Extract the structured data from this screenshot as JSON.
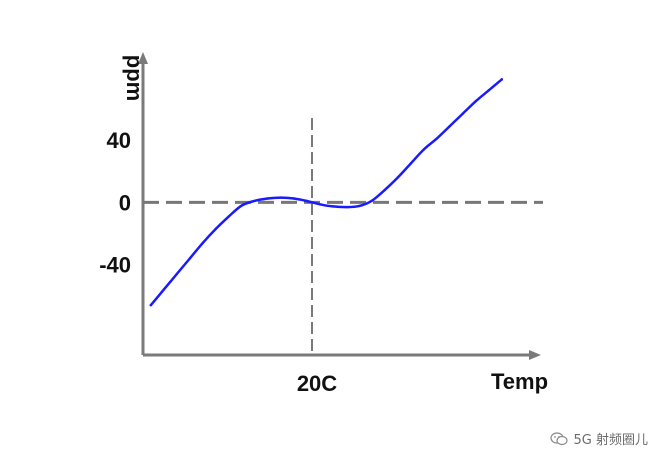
{
  "chart_data": {
    "type": "line",
    "xlabel": "Temp",
    "ylabel": "ppm",
    "x_tick_labels": [
      {
        "x": 20,
        "label": "20C"
      }
    ],
    "y_tick_labels": [
      {
        "y": 40,
        "label": "40"
      },
      {
        "y": 0,
        "label": "0"
      },
      {
        "y": -40,
        "label": "-40"
      }
    ],
    "xlim": [
      -45,
      105
    ],
    "ylim": [
      -98,
      112
    ],
    "reference_lines": [
      {
        "orientation": "horizontal",
        "value": 0,
        "style": "dashed"
      },
      {
        "orientation": "vertical",
        "value": 20,
        "style": "dashed"
      }
    ],
    "series": [
      {
        "color": "#1a1aff",
        "x": [
          -42,
          -37,
          -32,
          -27,
          -22,
          -17,
          -12,
          -7,
          -2,
          3,
          8,
          13,
          18,
          23,
          28,
          33,
          38,
          43,
          48,
          53,
          58,
          63,
          68,
          73,
          78,
          83,
          88,
          93
        ],
        "y": [
          -66,
          -56,
          -46,
          -36,
          -26,
          -17,
          -9,
          -2,
          1,
          2.5,
          3.1,
          2.5,
          0.9,
          -1.2,
          -2.6,
          -3,
          -2.4,
          1,
          8,
          16,
          25,
          34,
          41,
          49,
          57,
          65,
          72,
          79
        ]
      }
    ],
    "grid": false,
    "legend": "none"
  },
  "watermark": {
    "icon": "wechat-icon",
    "text": "5G 射频圈儿"
  }
}
